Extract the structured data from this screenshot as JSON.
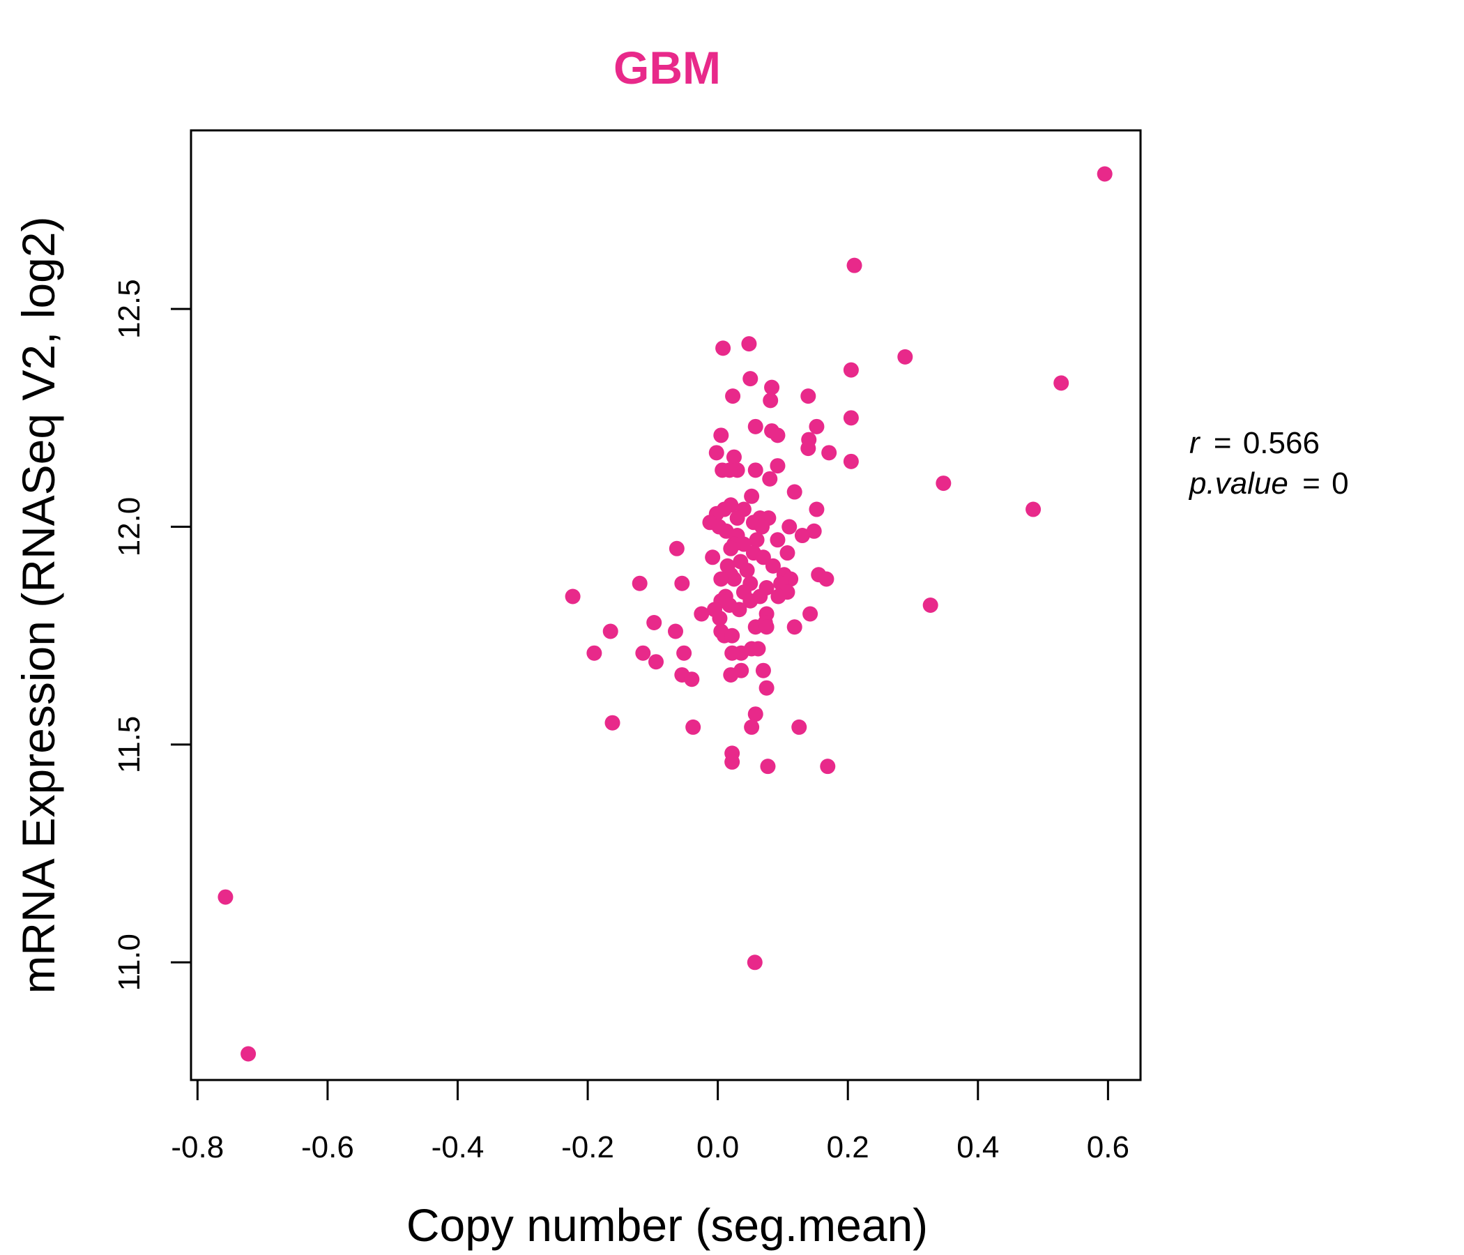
{
  "accent_color": "#e8298a",
  "chart_data": {
    "type": "scatter",
    "title": "GBM",
    "xlabel": "Copy number (seg.mean)",
    "ylabel": "mRNA Expression (RNASeq V2, log2)",
    "xlim": [
      -0.81,
      0.65
    ],
    "ylim": [
      10.73,
      12.91
    ],
    "xticks": [
      -0.8,
      -0.6,
      -0.4,
      -0.2,
      0.0,
      0.2,
      0.4,
      0.6
    ],
    "xtick_labels": [
      "-0.8",
      "-0.6",
      "-0.4",
      "-0.2",
      "0.0",
      "0.2",
      "0.4",
      "0.6"
    ],
    "yticks": [
      11.0,
      11.5,
      12.0,
      12.5
    ],
    "ytick_labels": [
      "11.0",
      "11.5",
      "12.0",
      "12.5"
    ],
    "grid": false,
    "point_color": "#e8298a",
    "annotations": {
      "r_label": "r",
      "r_value": "0.566",
      "p_label": "p.value",
      "p_value": "0"
    },
    "points": [
      [
        0.595,
        12.81
      ],
      [
        0.21,
        12.6
      ],
      [
        0.288,
        12.39
      ],
      [
        0.528,
        12.33
      ],
      [
        0.205,
        12.36
      ],
      [
        0.347,
        12.1
      ],
      [
        0.485,
        12.04
      ],
      [
        0.327,
        11.82
      ],
      [
        -0.757,
        11.15
      ],
      [
        -0.722,
        10.79
      ],
      [
        0.057,
        11.0
      ],
      [
        0.048,
        12.42
      ],
      [
        0.008,
        12.41
      ],
      [
        0.05,
        12.34
      ],
      [
        0.083,
        12.32
      ],
      [
        0.023,
        12.3
      ],
      [
        0.081,
        12.29
      ],
      [
        0.139,
        12.3
      ],
      [
        0.058,
        12.23
      ],
      [
        0.083,
        12.22
      ],
      [
        0.092,
        12.21
      ],
      [
        0.152,
        12.23
      ],
      [
        0.205,
        12.25
      ],
      [
        0.005,
        12.21
      ],
      [
        0.14,
        12.2
      ],
      [
        0.139,
        12.18
      ],
      [
        -0.002,
        12.17
      ],
      [
        0.025,
        12.16
      ],
      [
        0.171,
        12.17
      ],
      [
        0.205,
        12.15
      ],
      [
        0.092,
        12.14
      ],
      [
        0.007,
        12.13
      ],
      [
        0.03,
        12.13
      ],
      [
        0.058,
        12.13
      ],
      [
        0.018,
        12.13
      ],
      [
        0.08,
        12.11
      ],
      [
        0.118,
        12.08
      ],
      [
        0.052,
        12.07
      ],
      [
        0.152,
        12.04
      ],
      [
        0.02,
        12.05
      ],
      [
        0.04,
        12.04
      ],
      [
        0.01,
        12.04
      ],
      [
        -0.002,
        12.03
      ],
      [
        0.065,
        12.02
      ],
      [
        0.078,
        12.02
      ],
      [
        0.03,
        12.02
      ],
      [
        0.055,
        12.01
      ],
      [
        -0.012,
        12.01
      ],
      [
        0.002,
        12.0
      ],
      [
        0.068,
        12.0
      ],
      [
        0.11,
        12.0
      ],
      [
        0.148,
        11.99
      ],
      [
        0.013,
        11.99
      ],
      [
        0.03,
        11.98
      ],
      [
        0.13,
        11.98
      ],
      [
        0.06,
        11.97
      ],
      [
        0.092,
        11.97
      ],
      [
        0.025,
        11.96
      ],
      [
        0.04,
        11.96
      ],
      [
        -0.063,
        11.95
      ],
      [
        0.02,
        11.95
      ],
      [
        0.055,
        11.94
      ],
      [
        0.107,
        11.94
      ],
      [
        0.07,
        11.93
      ],
      [
        -0.008,
        11.93
      ],
      [
        0.035,
        11.92
      ],
      [
        0.085,
        11.91
      ],
      [
        0.015,
        11.91
      ],
      [
        0.045,
        11.9
      ],
      [
        0.102,
        11.89
      ],
      [
        0.155,
        11.89
      ],
      [
        0.167,
        11.88
      ],
      [
        0.112,
        11.88
      ],
      [
        0.02,
        11.89
      ],
      [
        0.025,
        11.88
      ],
      [
        0.005,
        11.88
      ],
      [
        0.05,
        11.87
      ],
      [
        0.097,
        11.87
      ],
      [
        -0.12,
        11.87
      ],
      [
        -0.055,
        11.87
      ],
      [
        0.075,
        11.86
      ],
      [
        0.107,
        11.85
      ],
      [
        0.04,
        11.85
      ],
      [
        0.065,
        11.84
      ],
      [
        0.093,
        11.84
      ],
      [
        0.012,
        11.84
      ],
      [
        -0.223,
        11.84
      ],
      [
        0.05,
        11.83
      ],
      [
        0.005,
        11.83
      ],
      [
        0.018,
        11.82
      ],
      [
        0.033,
        11.81
      ],
      [
        -0.005,
        11.81
      ],
      [
        0.075,
        11.8
      ],
      [
        -0.025,
        11.8
      ],
      [
        0.142,
        11.8
      ],
      [
        0.003,
        11.79
      ],
      [
        0.073,
        11.78
      ],
      [
        -0.098,
        11.78
      ],
      [
        0.118,
        11.77
      ],
      [
        0.058,
        11.77
      ],
      [
        0.075,
        11.77
      ],
      [
        -0.165,
        11.76
      ],
      [
        -0.065,
        11.76
      ],
      [
        0.005,
        11.76
      ],
      [
        0.01,
        11.75
      ],
      [
        0.022,
        11.75
      ],
      [
        0.052,
        11.72
      ],
      [
        0.062,
        11.72
      ],
      [
        0.036,
        11.71
      ],
      [
        -0.052,
        11.71
      ],
      [
        0.022,
        11.71
      ],
      [
        -0.19,
        11.71
      ],
      [
        -0.115,
        11.71
      ],
      [
        -0.095,
        11.69
      ],
      [
        0.036,
        11.67
      ],
      [
        0.07,
        11.67
      ],
      [
        0.02,
        11.66
      ],
      [
        -0.055,
        11.66
      ],
      [
        -0.04,
        11.65
      ],
      [
        0.075,
        11.63
      ],
      [
        0.058,
        11.57
      ],
      [
        -0.162,
        11.55
      ],
      [
        -0.038,
        11.54
      ],
      [
        0.052,
        11.54
      ],
      [
        0.125,
        11.54
      ],
      [
        0.022,
        11.48
      ],
      [
        0.022,
        11.46
      ],
      [
        0.077,
        11.45
      ],
      [
        0.169,
        11.45
      ]
    ]
  }
}
